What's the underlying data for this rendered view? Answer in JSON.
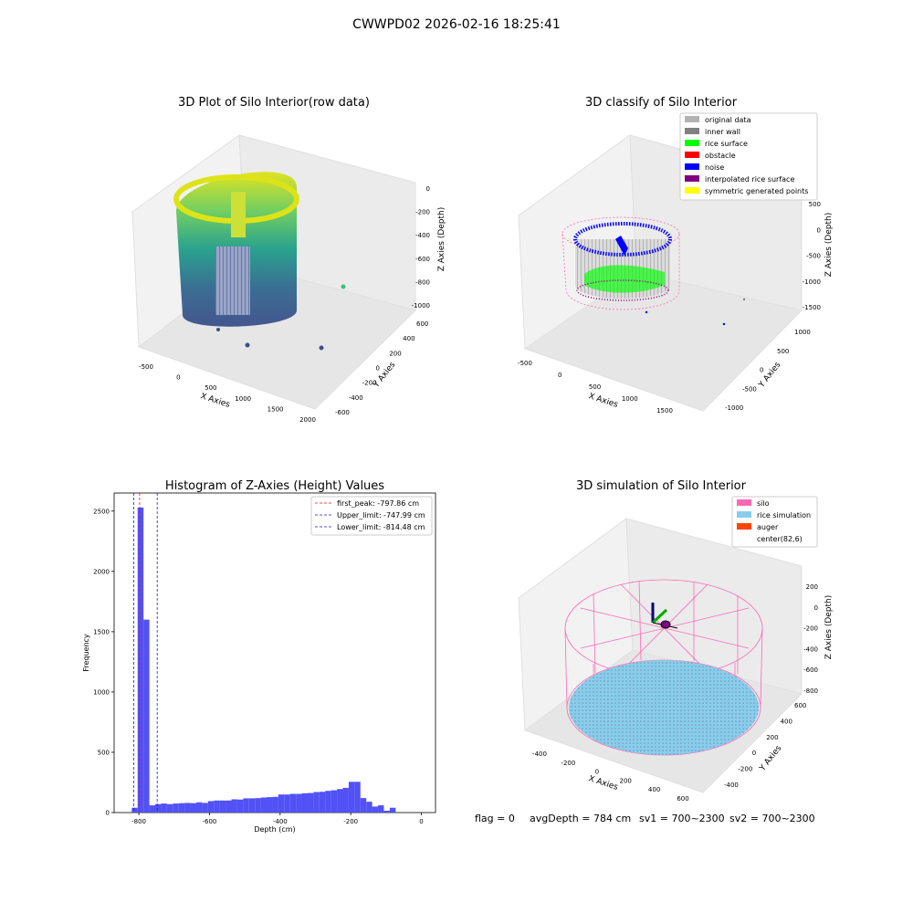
{
  "figure": {
    "suptitle": "CWWPD02 2026-02-16 18:25:41",
    "status": {
      "flag": "flag = 0",
      "avgDepth": "avgDepth = 784 cm",
      "sv1": "sv1 = 700~2300",
      "sv2": "sv2 = 700~2300"
    }
  },
  "colors": {
    "hist_bar": "#5151f5",
    "peak_line": "#e41a1c",
    "limit_line": "#1f1fb4",
    "silo": "#ff69b4",
    "rice_simulation": "#87ceeb",
    "auger": "#ff4500",
    "viridis_high": "#dde318",
    "viridis_low": "#3b4f8a",
    "original_data": "#b3b3b3",
    "inner_wall": "#808080",
    "rice_surface": "#00ff00",
    "obstacle": "#ff0000",
    "noise": "#0000ff",
    "interpolated_rice_surface": "#800080",
    "symmetric_generated_points": "#ffff00"
  },
  "chart_data": [
    {
      "type": "scatter",
      "title": "3D Plot of Silo Interior(row data)",
      "xlabel": "X Axies",
      "ylabel": "Y Axies",
      "zlabel": "Z Axies (Depth)",
      "x_ticks": [
        "-500",
        "0",
        "500",
        "1000",
        "1500",
        "2000"
      ],
      "y_ticks": [
        "-600",
        "-400",
        "-200",
        "0",
        "200",
        "400",
        "600"
      ],
      "z_ticks": [
        "0",
        "-200",
        "-400",
        "-600",
        "-800",
        "-1000"
      ],
      "colormap": "viridis"
    },
    {
      "type": "scatter",
      "title": "3D classify of Silo Interior",
      "xlabel": "X Axies",
      "ylabel": "Y Axies",
      "zlabel": "Z Axies (Depth)",
      "x_ticks": [
        "-500",
        "0",
        "500",
        "1000",
        "1500"
      ],
      "y_ticks": [
        "-1000",
        "-500",
        "0",
        "500",
        "1000"
      ],
      "z_ticks": [
        "500",
        "0",
        "-500",
        "-1000",
        "-1500"
      ],
      "legend": [
        {
          "label": "original data",
          "color": "#b3b3b3"
        },
        {
          "label": "inner wall",
          "color": "#808080"
        },
        {
          "label": "rice surface",
          "color": "#00ff00"
        },
        {
          "label": "obstacle",
          "color": "#ff0000"
        },
        {
          "label": "noise",
          "color": "#0000ff"
        },
        {
          "label": "interpolated rice surface",
          "color": "#800080"
        },
        {
          "label": "symmetric generated points",
          "color": "#ffff00"
        }
      ]
    },
    {
      "type": "bar",
      "title": "Histogram of Z-Axies (Height) Values",
      "xlabel": "Depth (cm)",
      "ylabel": "Frequency",
      "xlim": [
        -870,
        40
      ],
      "ylim": [
        0,
        2650
      ],
      "x_ticks": [
        -800,
        -600,
        -400,
        -200,
        0
      ],
      "y_ticks": [
        0,
        500,
        1000,
        1500,
        2000,
        2500
      ],
      "bin_start": -820,
      "bin_width": 16.6,
      "values": [
        40,
        2530,
        1600,
        60,
        70,
        75,
        70,
        75,
        78,
        80,
        78,
        85,
        80,
        95,
        100,
        100,
        100,
        110,
        108,
        118,
        118,
        120,
        125,
        128,
        130,
        150,
        150,
        155,
        155,
        160,
        162,
        170,
        172,
        180,
        185,
        195,
        205,
        255,
        255,
        120,
        90,
        50,
        60,
        15,
        40
      ],
      "lines": [
        {
          "label": "first_peak: -797.86 cm",
          "x": -797.86,
          "style": "peak"
        },
        {
          "label": "Upper_limit: -747.99 cm",
          "x": -747.99,
          "style": "limit"
        },
        {
          "label": "Lower_limit: -814.48 cm",
          "x": -814.48,
          "style": "limit"
        }
      ]
    },
    {
      "type": "scatter",
      "title": "3D simulation of Silo Interior",
      "xlabel": "X Axies",
      "ylabel": "Y Axies",
      "zlabel": "Z Axies (Depth)",
      "x_ticks": [
        "-400",
        "-200",
        "0",
        "200",
        "400",
        "600"
      ],
      "y_ticks": [
        "-400",
        "-200",
        "0",
        "200",
        "400",
        "600"
      ],
      "z_ticks": [
        "200",
        "0",
        "-200",
        "-400",
        "-600",
        "-800"
      ],
      "legend": [
        {
          "label": "silo",
          "color": "#ff69b4"
        },
        {
          "label": "rice simulation",
          "color": "#87ceeb"
        },
        {
          "label": "auger",
          "color": "#ff4500"
        },
        {
          "label": "center(82,6)",
          "color": ""
        }
      ]
    }
  ]
}
